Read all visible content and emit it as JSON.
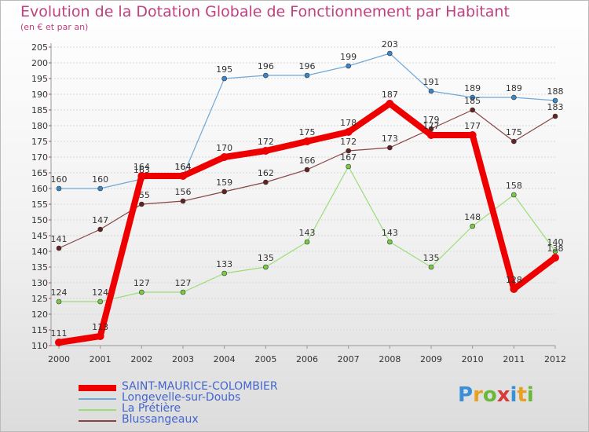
{
  "header": {
    "title": "Evolution de la Dotation Globale de Fonctionnement par Habitant",
    "subtitle": "(en € et par an)"
  },
  "logo": {
    "text": [
      "P",
      "r",
      "o",
      "x",
      "i",
      "t",
      "i"
    ],
    "colors": [
      "#3a8fd6",
      "#e8a020",
      "#6ab83a",
      "#d63a3a",
      "#3a8fd6",
      "#e8a020",
      "#6ab83a"
    ]
  },
  "chart_data": {
    "type": "line",
    "title": "Evolution de la Dotation Globale de Fonctionnement par Habitant",
    "subtitle": "(en € et par an)",
    "xlabel": "",
    "ylabel": "",
    "categories": [
      "2000",
      "2001",
      "2002",
      "2003",
      "2004",
      "2005",
      "2006",
      "2007",
      "2008",
      "2009",
      "2010",
      "2011",
      "2012"
    ],
    "ylim": [
      110,
      205
    ],
    "yticks": [
      110,
      115,
      120,
      125,
      130,
      135,
      140,
      145,
      150,
      155,
      160,
      165,
      170,
      175,
      180,
      185,
      190,
      195,
      200,
      205
    ],
    "grid": true,
    "series": [
      {
        "name": "Longevelle-sur-Doubs",
        "color": "#6fa8d8",
        "marker": "#3a86c8",
        "width": 1.2,
        "values": [
          160,
          160,
          163,
          164,
          195,
          196,
          196,
          199,
          203,
          191,
          189,
          189,
          188
        ]
      },
      {
        "name": "La Prétière",
        "color": "#99dd77",
        "marker": "#77cc44",
        "width": 1.2,
        "values": [
          124,
          124,
          127,
          127,
          133,
          135,
          143,
          167,
          143,
          135,
          148,
          158,
          140
        ]
      },
      {
        "name": "Blussangeaux",
        "color": "#884444",
        "marker": "#662222",
        "width": 1.2,
        "values": [
          141,
          147,
          155,
          156,
          159,
          162,
          166,
          172,
          173,
          179,
          185,
          175,
          183
        ]
      },
      {
        "name": "SAINT-MAURICE-COLOMBIER",
        "color": "#ee0000",
        "marker": "#ee0000",
        "width": 8,
        "values": [
          111,
          113,
          164,
          164,
          170,
          172,
          175,
          178,
          187,
          177,
          177,
          128,
          138
        ]
      }
    ],
    "legend": [
      {
        "name": "SAINT-MAURICE-COLOMBIER",
        "color": "#ee0000"
      },
      {
        "name": "Longevelle-sur-Doubs",
        "color": "#6fa8d8"
      },
      {
        "name": "La Prétière",
        "color": "#99dd77"
      },
      {
        "name": "Blussangeaux",
        "color": "#884444"
      }
    ]
  }
}
